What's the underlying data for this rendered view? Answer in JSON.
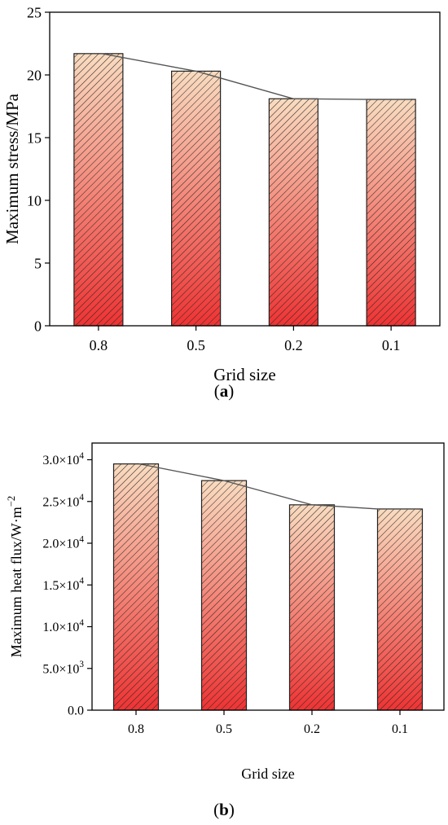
{
  "colors": {
    "bar_top": "#f9dcc0",
    "bar_bottom": "#ef3333",
    "hatch": "#2a2a2a",
    "line": "#555555",
    "axis": "#000000"
  },
  "chart_data": [
    {
      "type": "bar",
      "caption_open": "(",
      "caption_letter": "a",
      "caption_close": ")",
      "title": "",
      "xlabel": "Grid size",
      "ylabel": "Maximum stress/MPa",
      "categories": [
        "0.8",
        "0.5",
        "0.2",
        "0.1"
      ],
      "values": [
        21.7,
        20.3,
        18.1,
        18.05
      ],
      "ylim": [
        0,
        25
      ],
      "yticks": [
        0,
        5,
        10,
        15,
        20,
        25
      ],
      "ytick_labels": [
        "0",
        "5",
        "10",
        "15",
        "20",
        "25"
      ],
      "overlay_line": true,
      "grid": false
    },
    {
      "type": "bar",
      "caption_open": "(",
      "caption_letter": "b",
      "caption_close": ")",
      "title": "",
      "xlabel": "Grid size",
      "ylabel": "Maximum heat flux/W·m",
      "ylabel_sup": "−2",
      "categories": [
        "0.8",
        "0.5",
        "0.2",
        "0.1"
      ],
      "values": [
        29500,
        27500,
        24600,
        24100
      ],
      "ylim": [
        0,
        32000
      ],
      "yticks": [
        0,
        5000,
        10000,
        15000,
        20000,
        25000,
        30000
      ],
      "ytick_labels": [
        {
          "base": "0.0",
          "sup": ""
        },
        {
          "base": "5.0×10",
          "sup": "3"
        },
        {
          "base": "1.0×10",
          "sup": "4"
        },
        {
          "base": "1.5×10",
          "sup": "4"
        },
        {
          "base": "2.0×10",
          "sup": "4"
        },
        {
          "base": "2.5×10",
          "sup": "4"
        },
        {
          "base": "3.0×10",
          "sup": "4"
        }
      ],
      "overlay_line": true,
      "grid": false
    }
  ]
}
